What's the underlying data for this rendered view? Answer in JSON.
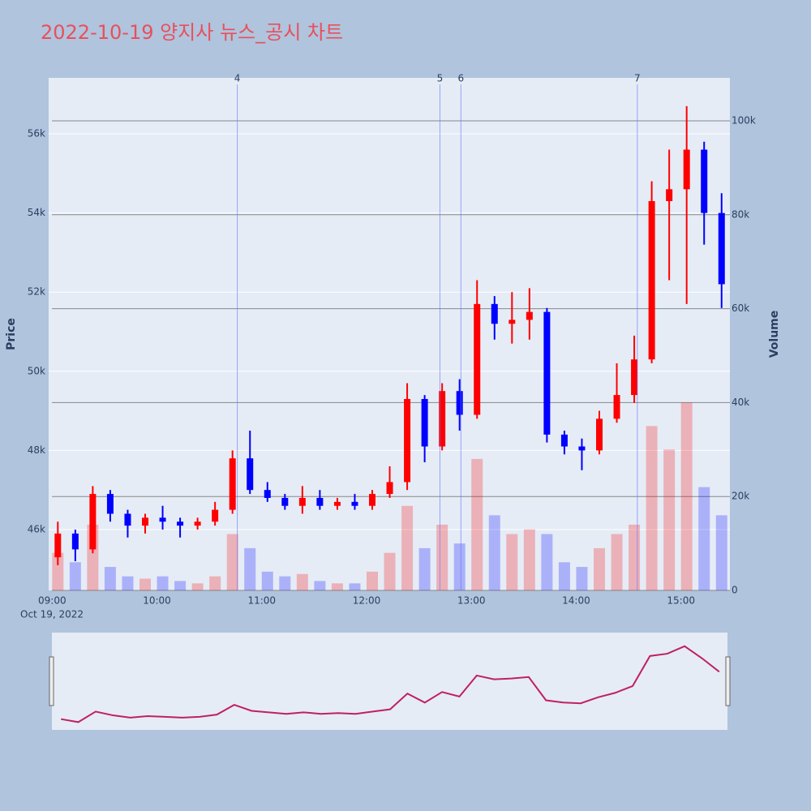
{
  "chart_data": {
    "type": "candlestick",
    "title": "2022-10-19 양지사 뉴스_공시 차트",
    "y_label": "Price",
    "y2_label": "Volume",
    "x_date_label": "Oct 19, 2022",
    "up_color": "#ff0000",
    "down_color": "#0000ff",
    "x": [
      "09:00",
      "09:10",
      "09:20",
      "09:30",
      "09:40",
      "09:50",
      "10:00",
      "10:10",
      "10:20",
      "10:30",
      "10:40",
      "10:50",
      "11:00",
      "11:10",
      "11:20",
      "11:30",
      "11:40",
      "11:50",
      "12:00",
      "12:10",
      "12:20",
      "12:30",
      "12:40",
      "12:50",
      "13:00",
      "13:10",
      "13:20",
      "13:30",
      "13:40",
      "13:50",
      "14:00",
      "14:10",
      "14:20",
      "14:30",
      "14:40",
      "14:50",
      "15:00",
      "15:10",
      "15:20"
    ],
    "open": [
      45300,
      45900,
      45500,
      46900,
      46400,
      46100,
      46300,
      46200,
      46100,
      46200,
      46500,
      47800,
      47000,
      46800,
      46600,
      46800,
      46600,
      46700,
      46600,
      46900,
      47200,
      49300,
      48100,
      49500,
      48900,
      51700,
      51200,
      51300,
      51500,
      48400,
      48100,
      48000,
      48800,
      49400,
      50300,
      54300,
      54600,
      55600,
      54000
    ],
    "high": [
      46200,
      46000,
      47100,
      47000,
      46500,
      46400,
      46600,
      46300,
      46300,
      46700,
      48000,
      48500,
      47200,
      46900,
      47100,
      47000,
      46800,
      46900,
      47000,
      47600,
      49700,
      49400,
      49700,
      49800,
      52300,
      51900,
      52000,
      52100,
      51600,
      48500,
      48300,
      49000,
      50200,
      50900,
      54800,
      55600,
      56700,
      55800,
      54500
    ],
    "low": [
      45100,
      45200,
      45400,
      46200,
      45800,
      45900,
      46000,
      45800,
      46000,
      46100,
      46400,
      46900,
      46700,
      46500,
      46400,
      46500,
      46500,
      46500,
      46500,
      46800,
      47000,
      47700,
      48000,
      48500,
      48800,
      50800,
      50700,
      50800,
      48200,
      47900,
      47500,
      47900,
      48700,
      49200,
      50200,
      52300,
      51700,
      53200,
      51600
    ],
    "close": [
      45900,
      45500,
      46900,
      46400,
      46100,
      46300,
      46200,
      46100,
      46200,
      46500,
      47800,
      47000,
      46800,
      46600,
      46800,
      46600,
      46700,
      46600,
      46900,
      47200,
      49300,
      48100,
      49500,
      48900,
      51700,
      51200,
      51300,
      51500,
      48400,
      48100,
      48000,
      48800,
      49400,
      50300,
      54300,
      54600,
      55600,
      54000,
      52200
    ],
    "volume": [
      8000,
      6000,
      14000,
      5000,
      3000,
      2500,
      3000,
      2000,
      1500,
      3000,
      12000,
      9000,
      4000,
      3000,
      3500,
      2000,
      1500,
      1500,
      4000,
      8000,
      18000,
      9000,
      14000,
      10000,
      28000,
      16000,
      12000,
      13000,
      12000,
      6000,
      5000,
      9000,
      12000,
      14000,
      35000,
      30000,
      40000,
      22000,
      16000
    ],
    "xlim": [
      "08:58",
      "15:28"
    ],
    "xticks": [
      "09:00",
      "10:00",
      "11:00",
      "12:00",
      "13:00",
      "14:00",
      "15:00"
    ],
    "ylim": [
      44463,
      57414
    ],
    "yticks": [
      {
        "value": 46000,
        "label": "46k"
      },
      {
        "value": 48000,
        "label": "48k"
      },
      {
        "value": 50000,
        "label": "50k"
      },
      {
        "value": 52000,
        "label": "52k"
      },
      {
        "value": 54000,
        "label": "54k"
      },
      {
        "value": 56000,
        "label": "56k"
      }
    ],
    "y2lim": [
      0,
      109150
    ],
    "y2ticks": [
      0,
      {
        "value": 20000,
        "label": "20k"
      },
      {
        "value": 40000,
        "label": "40k"
      },
      {
        "value": 60000,
        "label": "60k"
      },
      {
        "value": 80000,
        "label": "80k"
      },
      {
        "value": 100000,
        "label": "100k"
      }
    ],
    "annotations": [
      {
        "x": "10:46",
        "label": "4"
      },
      {
        "x": "12:42",
        "label": "5"
      },
      {
        "x": "12:54",
        "label": "6"
      },
      {
        "x": "14:35",
        "label": "7"
      }
    ]
  }
}
